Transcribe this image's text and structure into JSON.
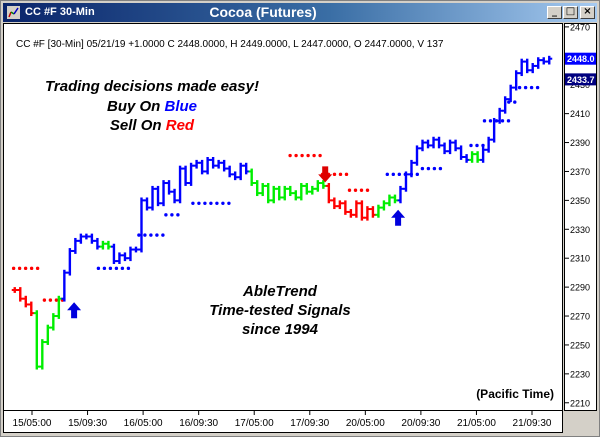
{
  "window": {
    "app_title": "CC #F 30-Min",
    "chart_title": "Cocoa (Futures)",
    "minimize_glyph": "_",
    "maximize_glyph": "□",
    "close_glyph": "×"
  },
  "header_line": "CC #F [30-Min] 05/21/19 +1.0000 C 2448.0000, H 2449.0000, L 2447.0000, O 2447.0000, V 137",
  "promo": {
    "line1": "Trading decisions made easy!",
    "buy_prefix": "Buy On ",
    "buy_word": "Blue",
    "sell_prefix": "Sell On ",
    "sell_word": "Red",
    "brand": "AbleTrend",
    "tagline": "Time-tested Signals",
    "since": "since 1994"
  },
  "timezone_label": "(Pacific Time)",
  "price_tags": [
    "2448.0",
    "2433.7"
  ],
  "colors": {
    "buy": "#0000ff",
    "sell": "#ff0000",
    "neutral": "#00ee00",
    "sell_arrow": "#dd0000",
    "buy_arrow": "#0000dd"
  },
  "chart_data": {
    "type": "bar",
    "title": "Cocoa (Futures)",
    "symbol": "CC #F",
    "interval": "30-Min",
    "ylim": [
      2205,
      2472
    ],
    "y_ticks": [
      2210,
      2230,
      2250,
      2270,
      2290,
      2310,
      2330,
      2350,
      2370,
      2390,
      2410,
      2430,
      2450,
      2470
    ],
    "x_ticks": [
      "15/05:00",
      "15/09:30",
      "16/05:00",
      "16/09:30",
      "17/05:00",
      "17/09:30",
      "20/05:00",
      "20/09:30",
      "21/05:00",
      "21/09:30"
    ],
    "grid": false,
    "segments": [
      {
        "color": "sell",
        "closes": [
          2288,
          2282,
          2278,
          2272
        ]
      },
      {
        "color": "neutral",
        "closes": [
          2235,
          2252,
          2262,
          2270,
          2282
        ]
      },
      {
        "color": "buy",
        "closes": [
          2300,
          2315,
          2322,
          2325,
          2325,
          2322,
          2318
        ]
      },
      {
        "color": "neutral",
        "closes": [
          2320,
          2318
        ]
      },
      {
        "color": "buy",
        "closes": [
          2308,
          2312,
          2310,
          2316,
          2316,
          2350,
          2345,
          2358,
          2348,
          2362,
          2356,
          2350,
          2372,
          2362,
          2374,
          2376,
          2370,
          2378,
          2374,
          2376,
          2372,
          2368,
          2366,
          2374,
          2370
        ]
      },
      {
        "color": "neutral",
        "closes": [
          2362,
          2355,
          2360,
          2350,
          2358,
          2352,
          2358,
          2355,
          2352,
          2360,
          2356,
          2358,
          2362,
          2360
        ]
      },
      {
        "color": "sell",
        "closes": [
          2350,
          2346,
          2348,
          2342,
          2340,
          2348,
          2338,
          2344,
          2340
        ]
      },
      {
        "color": "neutral",
        "closes": [
          2345,
          2348,
          2352,
          2350
        ]
      },
      {
        "color": "buy",
        "closes": [
          2358,
          2368,
          2376,
          2386,
          2390,
          2388,
          2392,
          2388,
          2384,
          2390,
          2386,
          2380,
          2378
        ]
      },
      {
        "color": "neutral",
        "closes": [
          2382,
          2378
        ]
      },
      {
        "color": "buy",
        "closes": [
          2385,
          2392,
          2405,
          2412,
          2420,
          2428,
          2438,
          2446,
          2440,
          2443,
          2447,
          2446,
          2448
        ]
      }
    ],
    "sell_stops": [
      {
        "x0": 0.003,
        "x1": 0.05,
        "y": 2303
      },
      {
        "x0": 0.06,
        "x1": 0.095,
        "y": 2281
      },
      {
        "x0": 0.515,
        "x1": 0.575,
        "y": 2381
      },
      {
        "x0": 0.575,
        "x1": 0.625,
        "y": 2368
      },
      {
        "x0": 0.625,
        "x1": 0.665,
        "y": 2357
      }
    ],
    "buy_stops": [
      {
        "x0": 0.16,
        "x1": 0.225,
        "y": 2303
      },
      {
        "x0": 0.235,
        "x1": 0.28,
        "y": 2326
      },
      {
        "x0": 0.285,
        "x1": 0.315,
        "y": 2340
      },
      {
        "x0": 0.335,
        "x1": 0.405,
        "y": 2348
      },
      {
        "x0": 0.695,
        "x1": 0.755,
        "y": 2368
      },
      {
        "x0": 0.76,
        "x1": 0.8,
        "y": 2372
      },
      {
        "x0": 0.85,
        "x1": 0.875,
        "y": 2388
      },
      {
        "x0": 0.875,
        "x1": 0.92,
        "y": 2405
      },
      {
        "x0": 0.92,
        "x1": 0.94,
        "y": 2418
      },
      {
        "x0": 0.94,
        "x1": 0.975,
        "y": 2428
      }
    ],
    "signal_arrows": [
      {
        "type": "buy",
        "x": 0.115,
        "y": 2274
      },
      {
        "type": "sell",
        "x": 0.58,
        "y": 2368
      },
      {
        "type": "buy",
        "x": 0.715,
        "y": 2338
      }
    ]
  }
}
